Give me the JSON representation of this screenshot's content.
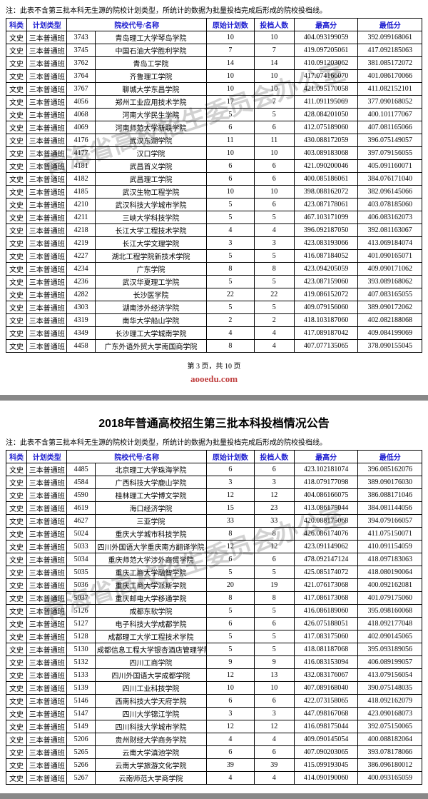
{
  "watermark_text": "青海省高校招生委员会办公室",
  "note": "注：此表不含第三批本科无生源的院校计划类型，所统计的数据为批量投档完成后形成的院校投档线。",
  "page_indicator": "第 3 页，共 10 页",
  "brand": "aooedu.com",
  "section2_title": "2018年普通高校招生第三批本科投档情况公告",
  "headers": [
    "科类",
    "计划类型",
    "院校代号/名称",
    "原始计划数",
    "投档人数",
    "最高分",
    "最低分"
  ],
  "headers_full": [
    "科类",
    "计划类型",
    "",
    "院校代号/名称",
    "原始计划数",
    "投档人数",
    "最高分",
    "最低分"
  ],
  "rows1": [
    [
      "文史",
      "三本普通班",
      "3743",
      "青岛理工大学琴岛学院",
      "10",
      "10",
      "404.093199059",
      "392.099168061"
    ],
    [
      "文史",
      "三本普通班",
      "3745",
      "中国石油大学胜利学院",
      "7",
      "7",
      "419.097205061",
      "417.092185063"
    ],
    [
      "文史",
      "三本普通班",
      "3762",
      "青岛工学院",
      "14",
      "14",
      "410.091203062",
      "381.085172072"
    ],
    [
      "文史",
      "三本普通班",
      "3764",
      "齐鲁理工学院",
      "10",
      "10",
      "417.074166070",
      "401.086170066"
    ],
    [
      "文史",
      "三本普通班",
      "3767",
      "聊城大学东昌学院",
      "10",
      "10",
      "421.095170058",
      "411.082152101"
    ],
    [
      "文史",
      "三本普通班",
      "4056",
      "郑州工业应用技术学院",
      "17",
      "7",
      "411.091195069",
      "377.090168052"
    ],
    [
      "文史",
      "三本普通班",
      "4068",
      "河南大学民生学院",
      "5",
      "5",
      "428.084201050",
      "400.101177067"
    ],
    [
      "文史",
      "三本普通班",
      "4069",
      "河南师范大学新联学院",
      "6",
      "6",
      "412.075189060",
      "407.081165066"
    ],
    [
      "文史",
      "三本普通班",
      "4176",
      "武汉东湖学院",
      "11",
      "11",
      "430.088172059",
      "396.075149057"
    ],
    [
      "文史",
      "三本普通班",
      "4177",
      "汉口学院",
      "10",
      "10",
      "403.089183068",
      "397.079156055"
    ],
    [
      "文史",
      "三本普通班",
      "4181",
      "武昌首义学院",
      "6",
      "6",
      "421.090200046",
      "405.091160071"
    ],
    [
      "文史",
      "三本普通班",
      "4182",
      "武昌理工学院",
      "6",
      "6",
      "400.085186061",
      "384.076171040"
    ],
    [
      "文史",
      "三本普通班",
      "4185",
      "武汉生物工程学院",
      "10",
      "10",
      "398.088162072",
      "382.096145066"
    ],
    [
      "文史",
      "三本普通班",
      "4210",
      "武汉科技大学城市学院",
      "5",
      "6",
      "423.087178061",
      "403.078185060"
    ],
    [
      "文史",
      "三本普通班",
      "4211",
      "三峡大学科技学院",
      "5",
      "5",
      "467.103171099",
      "406.083162073"
    ],
    [
      "文史",
      "三本普通班",
      "4218",
      "长江大学工程技术学院",
      "4",
      "4",
      "396.092187050",
      "392.081163067"
    ],
    [
      "文史",
      "三本普通班",
      "4219",
      "长江大学文理学院",
      "3",
      "3",
      "423.083193066",
      "413.069184074"
    ],
    [
      "文史",
      "三本普通班",
      "4227",
      "湖北工程学院新技术学院",
      "5",
      "5",
      "416.087184052",
      "401.090165071"
    ],
    [
      "文史",
      "三本普通班",
      "4234",
      "广东学院",
      "8",
      "8",
      "423.094205059",
      "409.090171062"
    ],
    [
      "文史",
      "三本普通班",
      "4236",
      "武汉华夏理工学院",
      "5",
      "5",
      "423.087159060",
      "393.089168062"
    ],
    [
      "文史",
      "三本普通班",
      "4282",
      "长沙医学院",
      "22",
      "22",
      "419.086152072",
      "407.083165055"
    ],
    [
      "文史",
      "三本普通班",
      "4303",
      "湖南涉外经济学院",
      "5",
      "5",
      "409.079156060",
      "389.090172062"
    ],
    [
      "文史",
      "三本普通班",
      "4319",
      "南华大学船山学院",
      "2",
      "2",
      "418.103187060",
      "402.082188068"
    ],
    [
      "文史",
      "三本普通班",
      "4349",
      "长沙理工大学城南学院",
      "4",
      "4",
      "417.089187042",
      "409.084199069"
    ],
    [
      "文史",
      "三本普通班",
      "4458",
      "广东外语外贸大学南国商学院",
      "8",
      "4",
      "407.077135065",
      "378.090155045"
    ]
  ],
  "rows2": [
    [
      "文史",
      "三本普通班",
      "4485",
      "北京理工大学珠海学院",
      "6",
      "6",
      "423.102181074",
      "396.085162076"
    ],
    [
      "文史",
      "三本普通班",
      "4584",
      "广西科技大学鹿山学院",
      "3",
      "3",
      "418.079177098",
      "389.090176030"
    ],
    [
      "文史",
      "三本普通班",
      "4590",
      "桂林理工大学博文学院",
      "12",
      "12",
      "404.086166075",
      "386.088171046"
    ],
    [
      "文史",
      "三本普通班",
      "4619",
      "海口经济学院",
      "15",
      "23",
      "413.086175044",
      "384.081144056"
    ],
    [
      "文史",
      "三本普通班",
      "4627",
      "三亚学院",
      "33",
      "33",
      "420.088175068",
      "394.079166057"
    ],
    [
      "文史",
      "三本普通班",
      "5024",
      "重庆大学城市科技学院",
      "8",
      "8",
      "426.086174076",
      "411.075150071"
    ],
    [
      "文史",
      "三本普通班",
      "5033",
      "四川外国语大学重庆南方翻译学院",
      "12",
      "12",
      "423.091149062",
      "410.091154059"
    ],
    [
      "文史",
      "三本普通班",
      "5034",
      "重庆师范大学涉外商贸学院",
      "6",
      "6",
      "478.092147124",
      "418.097183063"
    ],
    [
      "文史",
      "三本普通班",
      "5035",
      "重庆工商大学融智学院",
      "5",
      "5",
      "425.085174072",
      "418.080190064"
    ],
    [
      "文史",
      "三本普通班",
      "5036",
      "重庆工商大学派斯学院",
      "20",
      "19",
      "421.076173068",
      "400.092162081"
    ],
    [
      "文史",
      "三本普通班",
      "5037",
      "重庆邮电大学移通学院",
      "8",
      "8",
      "417.086173068",
      "401.079175060"
    ],
    [
      "文史",
      "三本普通班",
      "5126",
      "成都东软学院",
      "5",
      "5",
      "416.086189060",
      "395.098160068"
    ],
    [
      "文史",
      "三本普通班",
      "5127",
      "电子科技大学成都学院",
      "6",
      "6",
      "426.075188051",
      "418.092177048"
    ],
    [
      "文史",
      "三本普通班",
      "5128",
      "成都理工大学工程技术学院",
      "5",
      "5",
      "417.083175060",
      "402.090145065"
    ],
    [
      "文史",
      "三本普通班",
      "5130",
      "成都信息工程大学银杏酒店管理学院",
      "5",
      "5",
      "418.081187068",
      "395.093189056"
    ],
    [
      "文史",
      "三本普通班",
      "5132",
      "四川工商学院",
      "9",
      "9",
      "416.083153094",
      "406.089199057"
    ],
    [
      "文史",
      "三本普通班",
      "5133",
      "四川外国语大学成都学院",
      "12",
      "13",
      "432.083176067",
      "413.079156054"
    ],
    [
      "文史",
      "三本普通班",
      "5139",
      "四川工业科技学院",
      "10",
      "10",
      "407.089168040",
      "390.075148035"
    ],
    [
      "文史",
      "三本普通班",
      "5146",
      "西南科技大学天府学院",
      "6",
      "6",
      "422.073158065",
      "418.092162079"
    ],
    [
      "文史",
      "三本普通班",
      "5147",
      "四川大学锦江学院",
      "3",
      "3",
      "447.098167068",
      "423.090168073"
    ],
    [
      "文史",
      "三本普通班",
      "5149",
      "四川科技大学城市学院",
      "12",
      "12",
      "416.098175044",
      "392.075150065"
    ],
    [
      "文史",
      "三本普通班",
      "5206",
      "贵州财经大学商务学院",
      "4",
      "4",
      "409.090145054",
      "400.088182064"
    ],
    [
      "文史",
      "三本普通班",
      "5265",
      "云南大学滇池学院",
      "6",
      "6",
      "407.090203065",
      "393.078178066"
    ],
    [
      "文史",
      "三本普通班",
      "5266",
      "云南大学旅游文化学院",
      "39",
      "39",
      "415.099193045",
      "386.096180012"
    ],
    [
      "文史",
      "三本普通班",
      "5267",
      "云南师范大学商学院",
      "4",
      "4",
      "414.090190060",
      "400.093165059"
    ]
  ]
}
